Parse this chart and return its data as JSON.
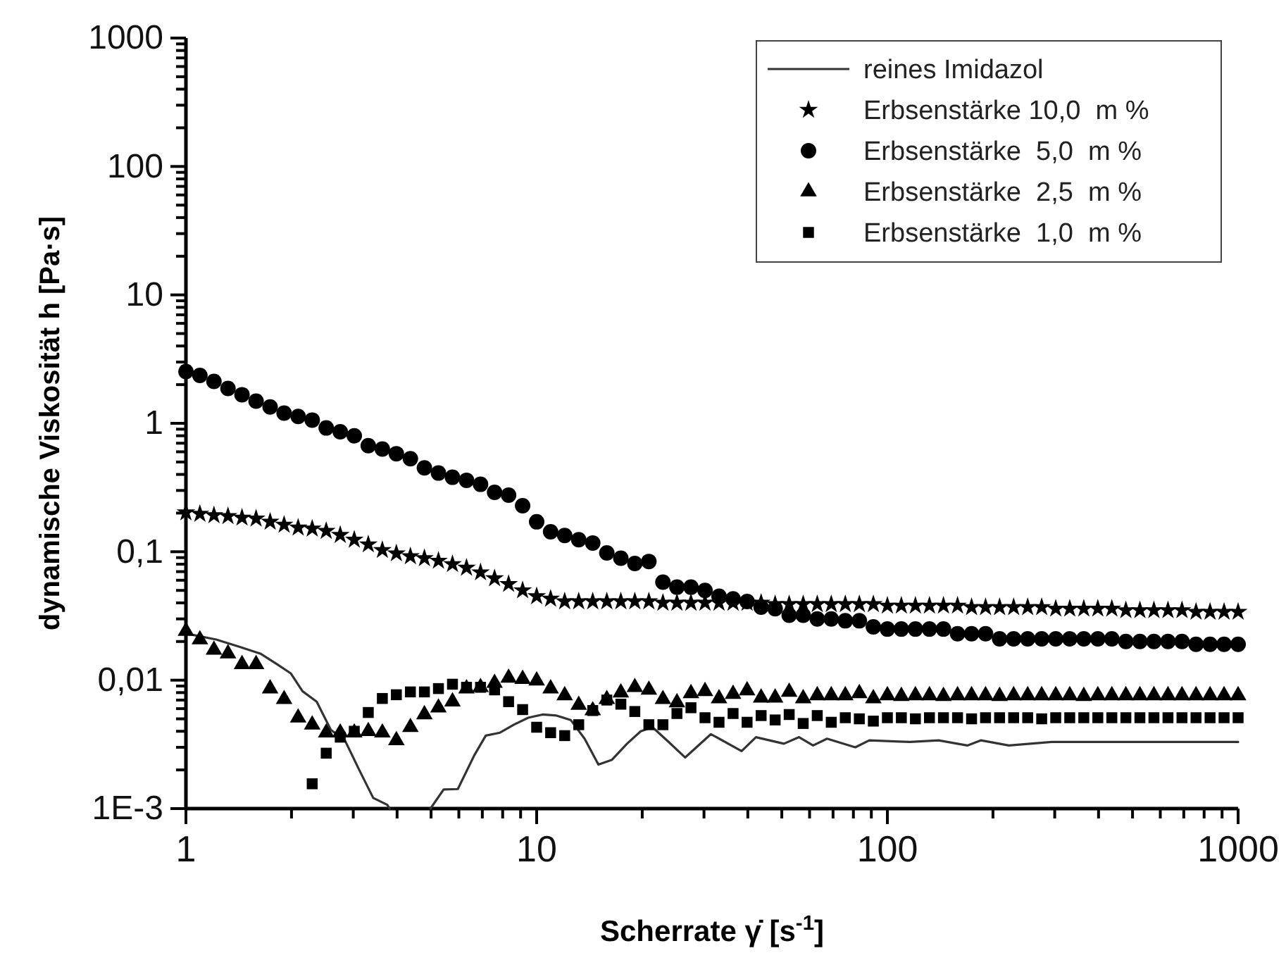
{
  "chart_data": {
    "type": "scatter",
    "xlabel": "Scherrate γ̇ [s$^{-1}$]",
    "ylabel": "dynamische Viskosität h [Pa·s]",
    "log": "xy",
    "legend": "top right",
    "grid": false,
    "xlim": [
      1,
      1000
    ],
    "ylim": [
      0.001,
      1000
    ],
    "xticks": [
      1,
      {
        "value": 2,
        "label": null
      },
      {
        "value": 3,
        "label": null
      },
      {
        "value": 4,
        "label": null
      },
      {
        "value": 5,
        "label": null
      },
      {
        "value": 6,
        "label": null
      },
      {
        "value": 7,
        "label": null
      },
      {
        "value": 8,
        "label": null
      },
      {
        "value": 9,
        "label": null
      },
      10,
      {
        "value": 20,
        "label": null
      },
      {
        "value": 30,
        "label": null
      },
      {
        "value": 40,
        "label": null
      },
      {
        "value": 50,
        "label": null
      },
      {
        "value": 60,
        "label": null
      },
      {
        "value": 70,
        "label": null
      },
      {
        "value": 80,
        "label": null
      },
      {
        "value": 90,
        "label": null
      },
      100,
      {
        "value": 200,
        "label": null
      },
      {
        "value": 300,
        "label": null
      },
      {
        "value": 400,
        "label": null
      },
      {
        "value": 500,
        "label": null
      },
      {
        "value": 600,
        "label": null
      },
      {
        "value": 700,
        "label": null
      },
      {
        "value": 800,
        "label": null
      },
      {
        "value": 900,
        "label": null
      },
      1000
    ],
    "yticks": [
      {
        "value": 0.001,
        "label": "1E-3"
      },
      {
        "value": 0.002,
        "label": null
      },
      {
        "value": 0.003,
        "label": null
      },
      {
        "value": 0.004,
        "label": null
      },
      {
        "value": 0.005,
        "label": null
      },
      {
        "value": 0.006,
        "label": null
      },
      {
        "value": 0.007,
        "label": null
      },
      {
        "value": 0.008,
        "label": null
      },
      {
        "value": 0.009,
        "label": null
      },
      {
        "value": 0.01,
        "label": "0,01"
      },
      {
        "value": 0.02,
        "label": null
      },
      {
        "value": 0.03,
        "label": null
      },
      {
        "value": 0.04,
        "label": null
      },
      {
        "value": 0.05,
        "label": null
      },
      {
        "value": 0.06,
        "label": null
      },
      {
        "value": 0.07,
        "label": null
      },
      {
        "value": 0.08,
        "label": null
      },
      {
        "value": 0.09,
        "label": null
      },
      {
        "value": 0.1,
        "label": "0,1"
      },
      {
        "value": 0.2,
        "label": null
      },
      {
        "value": 0.3,
        "label": null
      },
      {
        "value": 0.4,
        "label": null
      },
      {
        "value": 0.5,
        "label": null
      },
      {
        "value": 0.6,
        "label": null
      },
      {
        "value": 0.7,
        "label": null
      },
      {
        "value": 0.8,
        "label": null
      },
      {
        "value": 0.9,
        "label": null
      },
      1,
      {
        "value": 2,
        "label": null
      },
      {
        "value": 3,
        "label": null
      },
      {
        "value": 4,
        "label": null
      },
      {
        "value": 5,
        "label": null
      },
      {
        "value": 6,
        "label": null
      },
      {
        "value": 7,
        "label": null
      },
      {
        "value": 8,
        "label": null
      },
      {
        "value": 9,
        "label": null
      },
      10,
      {
        "value": 20,
        "label": null
      },
      {
        "value": 30,
        "label": null
      },
      {
        "value": 40,
        "label": null
      },
      {
        "value": 50,
        "label": null
      },
      {
        "value": 60,
        "label": null
      },
      {
        "value": 70,
        "label": null
      },
      {
        "value": 80,
        "label": null
      },
      {
        "value": 90,
        "label": null
      },
      100,
      {
        "value": 200,
        "label": null
      },
      {
        "value": 300,
        "label": null
      },
      {
        "value": 400,
        "label": null
      },
      {
        "value": 500,
        "label": null
      },
      {
        "value": 600,
        "label": null
      },
      {
        "value": 700,
        "label": null
      },
      {
        "value": 800,
        "label": null
      },
      {
        "value": 900,
        "label": null
      },
      1000
    ],
    "x": [
      1,
      1.096,
      1.202,
      1.318,
      1.445,
      1.585,
      1.738,
      1.905,
      2.089,
      2.291,
      2.512,
      2.754,
      3.02,
      3.311,
      3.631,
      3.981,
      4.365,
      4.786,
      5.248,
      5.754,
      6.31,
      6.918,
      7.586,
      8.318,
      9.12,
      10,
      10.96,
      12.02,
      13.18,
      14.45,
      15.85,
      17.38,
      19.05,
      20.89,
      22.91,
      25.12,
      27.54,
      30.2,
      33.11,
      36.31,
      39.81,
      43.65,
      47.86,
      52.48,
      57.54,
      63.1,
      69.18,
      75.86,
      83.18,
      91.2,
      100,
      109.6,
      120.2,
      131.8,
      144.5,
      158.5,
      173.8,
      190.5,
      208.9,
      229.1,
      251.2,
      275.4,
      302,
      331.1,
      363.1,
      398.1,
      436.5,
      478.6,
      524.8,
      575.4,
      631,
      691.8,
      758.6,
      831.8,
      912,
      1000
    ],
    "series": [
      {
        "name": "reines Imidazol",
        "type": "line",
        "color": "#333333",
        "marker": "none",
        "line_style": "solid",
        "x": [
          1,
          1.22,
          1.42,
          1.63,
          1.82,
          1.99,
          2.15,
          2.36,
          2.59,
          2.84,
          3.12,
          3.42,
          3.75,
          3.81,
          4.4,
          4.98,
          5.43,
          5.96,
          6.64,
          7.16,
          7.86,
          8.61,
          9.46,
          10.4,
          11.4,
          12.5,
          13.7,
          15,
          16.4,
          18.1,
          19.8,
          21.4,
          23.8,
          26.5,
          31.4,
          38.4,
          42.2,
          50.7,
          56,
          61.4,
          67.3,
          81,
          88.8,
          116,
          140,
          169,
          185,
          222,
          294,
          544,
          1000
        ],
        "values": [
          0.0231,
          0.0207,
          0.0182,
          0.0161,
          0.0133,
          0.0113,
          0.0082,
          0.0068,
          0.0041,
          0.0034,
          0.002,
          0.00121,
          0.00107,
          0.001,
          null,
          0.001,
          0.00141,
          0.00142,
          0.0026,
          0.0037,
          0.0039,
          0.0045,
          0.0051,
          0.0054,
          0.0053,
          0.0049,
          0.0035,
          0.0022,
          0.0024,
          0.0032,
          0.004,
          0.0043,
          0.0033,
          0.0025,
          0.0038,
          0.0028,
          0.0036,
          0.0032,
          0.0036,
          0.0031,
          0.0035,
          0.003,
          0.0034,
          0.0033,
          0.0034,
          0.0031,
          0.0034,
          0.0031,
          0.0033,
          0.0033,
          0.0033
        ]
      },
      {
        "name": "Erbsenstärke 10,0  m %",
        "marker": "star",
        "color": "#000000",
        "values": [
          0.202,
          0.197,
          0.192,
          0.189,
          0.184,
          0.181,
          0.171,
          0.162,
          0.154,
          0.151,
          0.145,
          0.135,
          0.124,
          0.114,
          0.103,
          0.097,
          0.092,
          0.089,
          0.085,
          0.08,
          0.075,
          0.069,
          0.062,
          0.056,
          0.05,
          0.045,
          0.043,
          0.041,
          0.041,
          0.041,
          0.041,
          0.041,
          0.041,
          0.041,
          0.04,
          0.04,
          0.04,
          0.04,
          0.04,
          0.04,
          0.04,
          0.04,
          0.039,
          0.039,
          0.039,
          0.039,
          0.039,
          0.039,
          0.039,
          0.039,
          0.038,
          0.038,
          0.038,
          0.038,
          0.038,
          0.038,
          0.037,
          0.037,
          0.037,
          0.037,
          0.037,
          0.037,
          0.036,
          0.036,
          0.036,
          0.036,
          0.036,
          0.035,
          0.035,
          0.035,
          0.035,
          0.035,
          0.034,
          0.034,
          0.034,
          0.034
        ]
      },
      {
        "name": "Erbsenstärke  5,0  m %",
        "marker": "circle",
        "color": "#000000",
        "values": [
          2.53,
          2.36,
          2.12,
          1.87,
          1.67,
          1.49,
          1.34,
          1.2,
          1.13,
          1.06,
          0.92,
          0.86,
          0.8,
          0.67,
          0.63,
          0.58,
          0.53,
          0.45,
          0.41,
          0.38,
          0.36,
          0.335,
          0.29,
          0.276,
          0.228,
          0.171,
          0.143,
          0.134,
          0.124,
          0.117,
          0.098,
          0.089,
          0.081,
          0.084,
          0.058,
          0.053,
          0.053,
          0.05,
          0.045,
          0.043,
          0.041,
          0.037,
          0.036,
          0.032,
          0.032,
          0.03,
          0.03,
          0.029,
          0.029,
          0.026,
          0.025,
          0.025,
          0.025,
          0.025,
          0.025,
          0.023,
          0.023,
          0.023,
          0.021,
          0.021,
          0.021,
          0.021,
          0.021,
          0.021,
          0.021,
          0.021,
          0.021,
          0.02,
          0.02,
          0.02,
          0.02,
          0.02,
          0.019,
          0.019,
          0.019,
          0.019
        ]
      },
      {
        "name": "Erbsenstärke  2,5  m %",
        "marker": "triangle",
        "color": "#000000",
        "values": [
          0.0241,
          0.0207,
          0.0172,
          0.0161,
          0.0133,
          0.0133,
          0.0086,
          0.0071,
          0.0051,
          0.0045,
          0.0039,
          0.0039,
          0.0039,
          0.004,
          0.0039,
          0.0034,
          0.0043,
          0.0054,
          0.0061,
          0.0068,
          0.0086,
          0.0088,
          0.0095,
          0.0104,
          0.0102,
          0.0099,
          0.0086,
          0.0076,
          0.0064,
          0.0058,
          0.0071,
          0.008,
          0.0088,
          0.0084,
          0.0071,
          0.0067,
          0.0079,
          0.0082,
          0.0072,
          0.0078,
          0.0083,
          0.0073,
          0.0073,
          0.0081,
          0.0072,
          0.0076,
          0.0076,
          0.0076,
          0.0079,
          0.0072,
          0.0076,
          0.0075,
          0.0076,
          0.0076,
          0.0075,
          0.0076,
          0.0076,
          0.0076,
          0.0075,
          0.0076,
          0.0076,
          0.0076,
          0.0076,
          0.0076,
          0.0075,
          0.0076,
          0.0076,
          0.0076,
          0.0076,
          0.0076,
          0.0076,
          0.0076,
          0.0076,
          0.0076,
          0.0076,
          0.0076
        ]
      },
      {
        "name": "Erbsenstärke  1,0  m %",
        "marker": "square",
        "color": "#000000",
        "values": [
          null,
          null,
          null,
          null,
          null,
          null,
          null,
          null,
          null,
          0.00156,
          0.0027,
          0.0036,
          0.004,
          0.0056,
          0.0072,
          0.0077,
          0.0081,
          0.0081,
          0.0086,
          0.0093,
          0.0088,
          0.0088,
          0.0084,
          0.0068,
          0.0059,
          0.0043,
          0.0039,
          0.0037,
          0.0045,
          0.0058,
          0.007,
          0.0065,
          0.0057,
          0.0045,
          0.0045,
          0.0055,
          0.0061,
          0.0051,
          0.0047,
          0.0055,
          0.0047,
          0.0053,
          0.0049,
          0.0054,
          0.0046,
          0.0053,
          0.0047,
          0.0051,
          0.005,
          0.0048,
          0.0051,
          0.0051,
          0.005,
          0.0051,
          0.0051,
          0.0051,
          0.005,
          0.0051,
          0.0051,
          0.0051,
          0.0051,
          0.005,
          0.0051,
          0.0051,
          0.0051,
          0.0051,
          0.0051,
          0.0051,
          0.0051,
          0.0051,
          0.0051,
          0.0051,
          0.0051,
          0.0051,
          0.0051,
          0.0051
        ]
      }
    ]
  }
}
